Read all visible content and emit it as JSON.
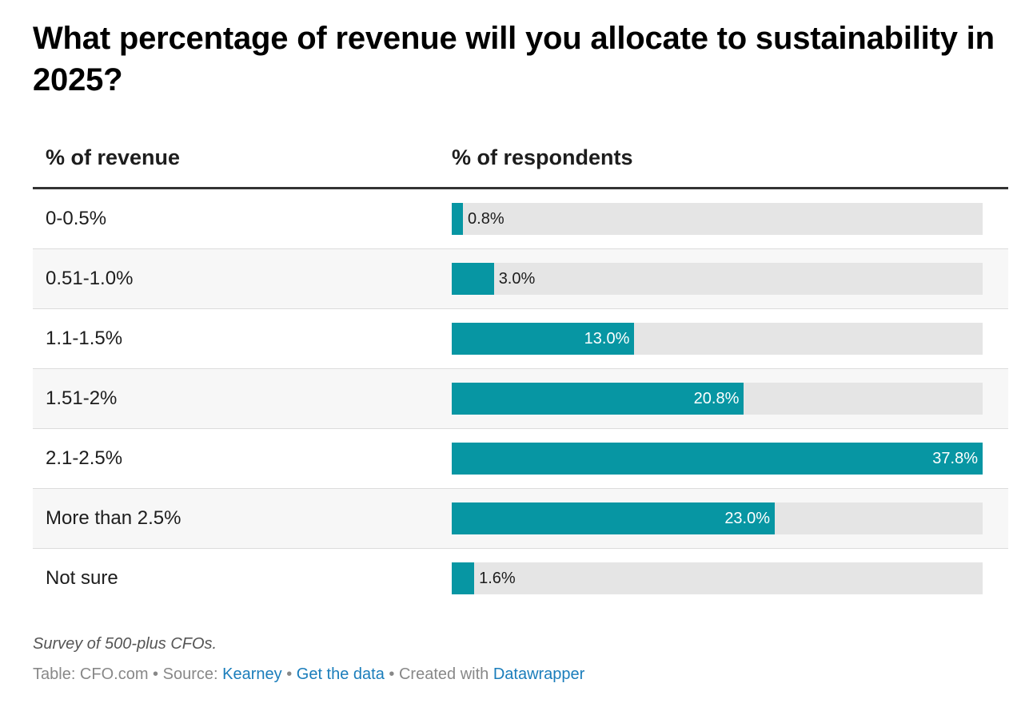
{
  "title": "What percentage of revenue will you allocate to sustainability in 2025?",
  "table": {
    "col_category": "% of revenue",
    "col_value": "% of respondents"
  },
  "notes": "Survey of 500-plus CFOs.",
  "footer": {
    "table_credit": "Table: CFO.com",
    "separator": "•",
    "source_prefix": "Source:",
    "source_link": "Kearney",
    "get_data_link": "Get the data",
    "created_with_prefix": "Created with",
    "created_with_link": "Datawrapper"
  },
  "colors": {
    "bar": "#0796a3",
    "track": "#e5e5e5",
    "link": "#1a7dbb"
  },
  "chart_data": {
    "type": "bar",
    "orientation": "horizontal",
    "title": "What percentage of revenue will you allocate to sustainability in 2025?",
    "xlabel": "% of respondents",
    "ylabel": "% of revenue",
    "xlim": [
      0,
      37.8
    ],
    "categories": [
      "0-0.5%",
      "0.51-1.0%",
      "1.1-1.5%",
      "1.51-2%",
      "2.1-2.5%",
      "More than 2.5%",
      "Not sure"
    ],
    "values": [
      0.8,
      3.0,
      13.0,
      20.8,
      37.8,
      23.0,
      1.6
    ],
    "labels": [
      "0.8%",
      "3.0%",
      "13.0%",
      "20.8%",
      "37.8%",
      "23.0%",
      "1.6%"
    ],
    "grid": false
  }
}
